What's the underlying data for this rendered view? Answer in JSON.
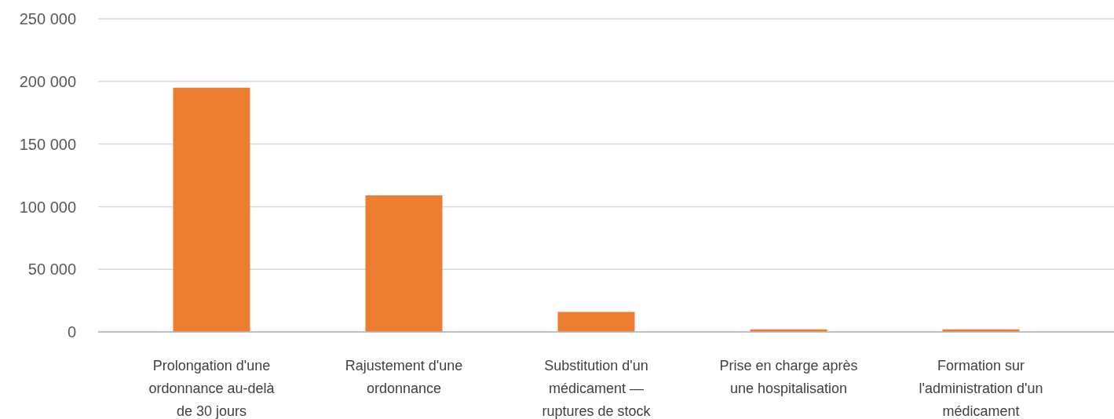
{
  "chart_data": {
    "type": "bar",
    "categories": [
      "Prolongation d'une ordonnance au-delà de 30 jours",
      "Rajustement d'une ordonnance",
      "Substitution d'un médicament — ruptures de stock",
      "Prise en charge après une hospitalisation",
      "Formation sur l'administration d'un médicament"
    ],
    "values": [
      195000,
      109000,
      16000,
      2000,
      2000
    ],
    "color": "#ed7d31",
    "ylim": [
      0,
      250000
    ],
    "yticks": [
      0,
      {
        "value": 50000,
        "label": "50 000"
      },
      {
        "value": 100000,
        "label": "100 000"
      },
      {
        "value": 150000,
        "label": "150 000"
      },
      {
        "value": 200000,
        "label": "200 000"
      },
      {
        "value": 250000,
        "label": "250 000"
      }
    ],
    "grid": "y"
  }
}
